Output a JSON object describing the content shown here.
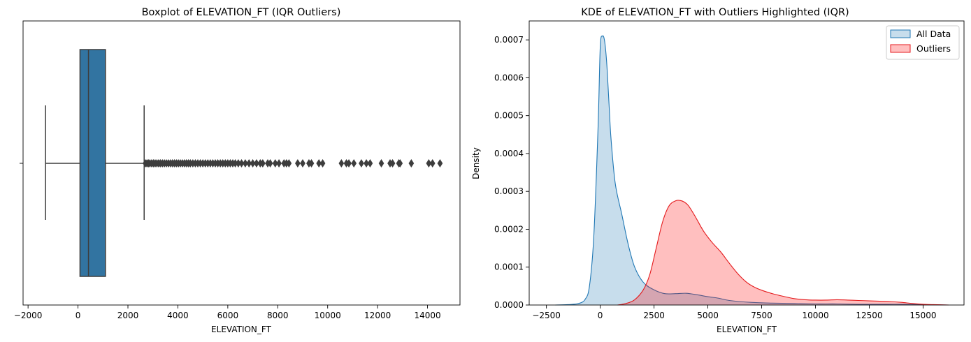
{
  "chart_data": [
    {
      "type": "boxplot",
      "title": "Boxplot of ELEVATION_FT (IQR Outliers)",
      "xlabel": "ELEVATION_FT",
      "ylabel": "",
      "xlim": [
        -2200,
        15300
      ],
      "xticks": [
        -2000,
        0,
        2000,
        4000,
        6000,
        8000,
        10000,
        12000,
        14000
      ],
      "xtick_labels": [
        "−2000",
        "0",
        "2000",
        "4000",
        "6000",
        "8000",
        "10000",
        "12000",
        "14000"
      ],
      "box": {
        "whisker_low": -1300,
        "q1": 80,
        "median": 420,
        "q3": 1100,
        "whisker_high": 2650,
        "color": "#3274a1"
      },
      "outliers": [
        2700,
        2760,
        2820,
        2880,
        2950,
        3020,
        3090,
        3160,
        3230,
        3300,
        3380,
        3460,
        3540,
        3620,
        3700,
        3780,
        3860,
        3940,
        4020,
        4100,
        4180,
        4260,
        4340,
        4420,
        4500,
        4600,
        4700,
        4800,
        4900,
        5000,
        5100,
        5200,
        5300,
        5400,
        5500,
        5600,
        5700,
        5800,
        5900,
        6000,
        6100,
        6200,
        6300,
        6420,
        6550,
        6700,
        6850,
        7000,
        7150,
        7300,
        7400,
        7600,
        7700,
        7900,
        8050,
        8250,
        8350,
        8450,
        8800,
        9000,
        9250,
        9350,
        9650,
        9800,
        10550,
        10750,
        10850,
        11050,
        11350,
        11550,
        11700,
        12150,
        12500,
        12600,
        12850,
        12900,
        13350,
        14050,
        14200,
        14500
      ],
      "grid": false
    },
    {
      "type": "area",
      "title": "KDE of ELEVATION_FT with Outliers Highlighted (IQR)",
      "xlabel": "ELEVATION_FT",
      "ylabel": "Density",
      "xlim": [
        -3300,
        16900
      ],
      "ylim": [
        0,
        0.00075
      ],
      "xticks": [
        -2500,
        0,
        2500,
        5000,
        7500,
        10000,
        12500,
        15000
      ],
      "xtick_labels": [
        "−2500",
        "0",
        "2500",
        "5000",
        "7500",
        "10000",
        "12500",
        "15000"
      ],
      "yticks": [
        0,
        0.0001,
        0.0002,
        0.0003,
        0.0004,
        0.0005,
        0.0006,
        0.0007
      ],
      "ytick_labels": [
        "0.0000",
        "0.0001",
        "0.0002",
        "0.0003",
        "0.0004",
        "0.0005",
        "0.0006",
        "0.0007"
      ],
      "legend_position": "top-right",
      "grid": false,
      "series": [
        {
          "name": "All Data",
          "line_color": "#1f77b4",
          "fill_color": "#1f77b4",
          "x": [
            -2100,
            -1500,
            -1000,
            -700,
            -500,
            -300,
            -100,
            0,
            100,
            200,
            300,
            400,
            500,
            700,
            1000,
            1300,
            1600,
            2000,
            2500,
            3000,
            3500,
            4000,
            4500,
            5000,
            5500,
            6000,
            7000,
            8000,
            9000,
            10000,
            11000,
            12000,
            13000,
            14000,
            15000,
            16200
          ],
          "y": [
            0.0,
            1e-06,
            4e-06,
            1.5e-05,
            5e-05,
            0.00018,
            0.00047,
            0.00068,
            0.00071,
            0.000698,
            0.00064,
            0.00054,
            0.00044,
            0.00032,
            0.00024,
            0.00016,
            0.0001,
            6e-05,
            4e-05,
            3e-05,
            3e-05,
            3.1e-05,
            2.7e-05,
            2.2e-05,
            1.8e-05,
            1.2e-05,
            7e-06,
            5e-06,
            4e-06,
            3e-06,
            3e-06,
            2e-06,
            2e-06,
            2e-06,
            1e-06,
            0.0
          ]
        },
        {
          "name": "Outliers",
          "line_color": "#e41a1c",
          "fill_color": "#ff0000",
          "x": [
            800,
            1200,
            1600,
            2000,
            2300,
            2600,
            2900,
            3200,
            3500,
            3700,
            3900,
            4100,
            4400,
            4800,
            5200,
            5600,
            6000,
            6400,
            6800,
            7200,
            7600,
            8000,
            8500,
            9000,
            9500,
            10000,
            10500,
            11000,
            11500,
            12000,
            12500,
            13000,
            13500,
            14000,
            14500,
            15000,
            15500,
            16200
          ],
          "y": [
            0.0,
            4e-06,
            1.4e-05,
            4e-05,
            8e-05,
            0.00015,
            0.00022,
            0.000262,
            0.000275,
            0.000276,
            0.000272,
            0.000262,
            0.000235,
            0.000195,
            0.000165,
            0.00014,
            0.00011,
            8.2e-05,
            6e-05,
            4.6e-05,
            3.7e-05,
            3e-05,
            2.3e-05,
            1.7e-05,
            1.4e-05,
            1.3e-05,
            1.3e-05,
            1.4e-05,
            1.3e-05,
            1.2e-05,
            1.1e-05,
            1e-05,
            9e-06,
            7e-06,
            4e-06,
            2e-06,
            1e-06,
            0.0
          ]
        }
      ]
    }
  ]
}
